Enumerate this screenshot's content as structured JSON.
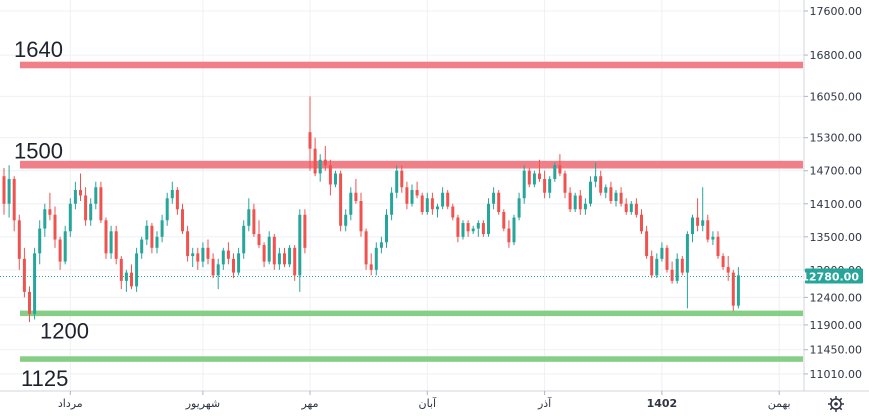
{
  "chart_data": {
    "type": "candlestick",
    "y_range": [
      10700,
      17800
    ],
    "y_ticks": [
      {
        "value": 17600,
        "label": "17600.00"
      },
      {
        "value": 16800,
        "label": "16800.00"
      },
      {
        "value": 16050,
        "label": "16050.00"
      },
      {
        "value": 15300,
        "label": "15300.00"
      },
      {
        "value": 14700,
        "label": "14700.00"
      },
      {
        "value": 14100,
        "label": "14100.00"
      },
      {
        "value": 13500,
        "label": "13500.00"
      },
      {
        "value": 12900,
        "label": "12900.00"
      },
      {
        "value": 12400,
        "label": "12400.00"
      },
      {
        "value": 11900,
        "label": "11900.00"
      },
      {
        "value": 11450,
        "label": "11450.00"
      },
      {
        "value": 11010,
        "label": "11010.00"
      }
    ],
    "x_ticks": [
      {
        "index": 13,
        "label": "مرداد",
        "bold": false
      },
      {
        "index": 39,
        "label": "شهریور",
        "bold": false
      },
      {
        "index": 60,
        "label": "مهر",
        "bold": false
      },
      {
        "index": 83,
        "label": "آبان",
        "bold": false
      },
      {
        "index": 106,
        "label": "آذر",
        "bold": false
      },
      {
        "index": 129,
        "label": "1402",
        "bold": true
      },
      {
        "index": 152,
        "label": "بهمن",
        "bold": false
      }
    ],
    "last_price": {
      "value": 12780,
      "label": "12780.00",
      "color": "#26a69a"
    },
    "levels": [
      {
        "name": "resistance-1640",
        "label": "1640",
        "center": 16620,
        "band": [
          16560,
          16680
        ],
        "color": "#f07f88"
      },
      {
        "name": "resistance-1500",
        "label": "1500",
        "center": 14810,
        "band": [
          14740,
          14880
        ],
        "color": "#f07f88"
      },
      {
        "name": "support-1200",
        "label": "1200",
        "center": 12110,
        "band": [
          12060,
          12160
        ],
        "color": "#86cd86"
      },
      {
        "name": "support-1125",
        "label": "1125",
        "center": 11280,
        "band": [
          11230,
          11330
        ],
        "color": "#86cd86"
      }
    ],
    "colors": {
      "up": "#26a69a",
      "down": "#ef5350",
      "grid": "#eef0f3"
    },
    "candles": [
      [
        14600,
        14750,
        13900,
        14100
      ],
      [
        14100,
        14800,
        13850,
        14550
      ],
      [
        14550,
        14600,
        13600,
        13800
      ],
      [
        13800,
        13900,
        12900,
        13100
      ],
      [
        13100,
        13300,
        12400,
        12500
      ],
      [
        12500,
        12600,
        11950,
        12100
      ],
      [
        12100,
        13300,
        12000,
        13200
      ],
      [
        13200,
        13800,
        13000,
        13650
      ],
      [
        13650,
        14100,
        13500,
        14000
      ],
      [
        14000,
        14300,
        13800,
        13900
      ],
      [
        13900,
        14050,
        13300,
        13450
      ],
      [
        13450,
        13500,
        12900,
        13050
      ],
      [
        13050,
        13700,
        13000,
        13600
      ],
      [
        13600,
        14200,
        13500,
        14100
      ],
      [
        14100,
        14500,
        14000,
        14350
      ],
      [
        14350,
        14650,
        14150,
        14250
      ],
      [
        14250,
        14400,
        13700,
        13800
      ],
      [
        13800,
        14200,
        13700,
        14100
      ],
      [
        14100,
        14500,
        14000,
        14400
      ],
      [
        14400,
        14500,
        13750,
        13800
      ],
      [
        13800,
        13850,
        13100,
        13200
      ],
      [
        13200,
        13700,
        13100,
        13600
      ],
      [
        13600,
        13700,
        13000,
        13100
      ],
      [
        13100,
        13150,
        12550,
        12700
      ],
      [
        12700,
        12900,
        12500,
        12850
      ],
      [
        12850,
        13000,
        12550,
        12600
      ],
      [
        12600,
        13300,
        12500,
        13200
      ],
      [
        13200,
        13500,
        13100,
        13450
      ],
      [
        13450,
        13800,
        13350,
        13700
      ],
      [
        13700,
        13750,
        13200,
        13300
      ],
      [
        13300,
        13600,
        13200,
        13500
      ],
      [
        13500,
        13900,
        13400,
        13800
      ],
      [
        13800,
        14300,
        13700,
        14200
      ],
      [
        14200,
        14500,
        14100,
        14350
      ],
      [
        14350,
        14400,
        13900,
        14000
      ],
      [
        14000,
        14100,
        13550,
        13600
      ],
      [
        13600,
        13700,
        13050,
        13150
      ],
      [
        13150,
        13300,
        12950,
        13200
      ],
      [
        13200,
        13300,
        12900,
        13050
      ],
      [
        13050,
        13400,
        12950,
        13300
      ],
      [
        13300,
        13450,
        13000,
        13100
      ],
      [
        13100,
        13200,
        12750,
        12800
      ],
      [
        12800,
        13100,
        12550,
        13000
      ],
      [
        13000,
        13300,
        12900,
        13250
      ],
      [
        13250,
        13400,
        13000,
        13100
      ],
      [
        13100,
        13200,
        12750,
        12850
      ],
      [
        12850,
        13300,
        12800,
        13200
      ],
      [
        13200,
        13800,
        13100,
        13700
      ],
      [
        13700,
        14200,
        13600,
        14000
      ],
      [
        14000,
        14100,
        13500,
        13550
      ],
      [
        13550,
        13800,
        13300,
        13350
      ],
      [
        13350,
        13400,
        12950,
        13050
      ],
      [
        13050,
        13600,
        13000,
        13500
      ],
      [
        13500,
        13550,
        12900,
        13000
      ],
      [
        13000,
        13300,
        12900,
        13200
      ],
      [
        13200,
        13300,
        12950,
        13000
      ],
      [
        13000,
        13350,
        12950,
        13300
      ],
      [
        13300,
        13350,
        12700,
        12800
      ],
      [
        12800,
        14000,
        12500,
        13900
      ],
      [
        13900,
        14000,
        13200,
        13300
      ],
      [
        15400,
        16050,
        14700,
        15100
      ],
      [
        15100,
        15300,
        14600,
        14650
      ],
      [
        14650,
        15000,
        14500,
        14900
      ],
      [
        14900,
        15150,
        14700,
        14800
      ],
      [
        14800,
        14900,
        14250,
        14450
      ],
      [
        14450,
        14700,
        14400,
        14650
      ],
      [
        14650,
        14700,
        13600,
        13700
      ],
      [
        13700,
        14000,
        13600,
        13900
      ],
      [
        13900,
        14400,
        13800,
        14300
      ],
      [
        14300,
        14550,
        14100,
        14150
      ],
      [
        14150,
        14300,
        13500,
        13600
      ],
      [
        13600,
        13650,
        12900,
        13000
      ],
      [
        13000,
        13200,
        12800,
        12900
      ],
      [
        12900,
        13400,
        12800,
        13300
      ],
      [
        13300,
        13500,
        13200,
        13400
      ],
      [
        13400,
        14000,
        13300,
        13900
      ],
      [
        13900,
        14400,
        13800,
        14300
      ],
      [
        14300,
        14800,
        14200,
        14700
      ],
      [
        14700,
        14800,
        14300,
        14400
      ],
      [
        14400,
        14500,
        14000,
        14100
      ],
      [
        14100,
        14450,
        14050,
        14350
      ],
      [
        14350,
        14500,
        14200,
        14250
      ],
      [
        14250,
        14300,
        13900,
        13950
      ],
      [
        13950,
        14300,
        13900,
        14200
      ],
      [
        14200,
        14300,
        13900,
        14000
      ],
      [
        14000,
        14100,
        13850,
        14050
      ],
      [
        14050,
        14400,
        14000,
        14300
      ],
      [
        14300,
        14350,
        14000,
        14050
      ],
      [
        14050,
        14100,
        13800,
        13850
      ],
      [
        13850,
        13900,
        13400,
        13500
      ],
      [
        13500,
        13800,
        13450,
        13750
      ],
      [
        13750,
        13800,
        13500,
        13600
      ],
      [
        13600,
        13700,
        13550,
        13650
      ],
      [
        13650,
        13800,
        13500,
        13750
      ],
      [
        13750,
        13800,
        13500,
        13550
      ],
      [
        13550,
        14200,
        13500,
        14100
      ],
      [
        14100,
        14400,
        14000,
        14300
      ],
      [
        14300,
        14350,
        13900,
        13950
      ],
      [
        13950,
        14000,
        13600,
        13650
      ],
      [
        13650,
        13800,
        13300,
        13400
      ],
      [
        13400,
        13900,
        13350,
        13850
      ],
      [
        13850,
        14300,
        13800,
        14200
      ],
      [
        14200,
        14800,
        14100,
        14700
      ],
      [
        14700,
        14750,
        14400,
        14450
      ],
      [
        14450,
        14700,
        14400,
        14650
      ],
      [
        14650,
        14900,
        14500,
        14550
      ],
      [
        14550,
        14700,
        14200,
        14300
      ],
      [
        14300,
        14600,
        14200,
        14550
      ],
      [
        14550,
        14850,
        14500,
        14800
      ],
      [
        14800,
        15000,
        14600,
        14650
      ],
      [
        14650,
        14700,
        14200,
        14300
      ],
      [
        14300,
        14400,
        13950,
        14000
      ],
      [
        14000,
        14300,
        13950,
        14250
      ],
      [
        14250,
        14350,
        13900,
        14000
      ],
      [
        14000,
        14200,
        13900,
        14100
      ],
      [
        14100,
        14600,
        14050,
        14500
      ],
      [
        14500,
        14850,
        14400,
        14600
      ],
      [
        14600,
        14700,
        14250,
        14300
      ],
      [
        14300,
        14450,
        14200,
        14400
      ],
      [
        14400,
        14500,
        14100,
        14150
      ],
      [
        14150,
        14350,
        14050,
        14300
      ],
      [
        14300,
        14400,
        14050,
        14100
      ],
      [
        14100,
        14200,
        13900,
        13950
      ],
      [
        13950,
        14150,
        13900,
        14100
      ],
      [
        14100,
        14200,
        13850,
        13900
      ],
      [
        13900,
        14000,
        13550,
        13600
      ],
      [
        13600,
        13700,
        13100,
        13150
      ],
      [
        13150,
        13250,
        12750,
        12800
      ],
      [
        12800,
        13200,
        12750,
        13100
      ],
      [
        13100,
        13400,
        13050,
        13300
      ],
      [
        13300,
        13350,
        12850,
        12900
      ],
      [
        12900,
        13050,
        12650,
        12700
      ],
      [
        12700,
        13200,
        12650,
        13100
      ],
      [
        13100,
        13150,
        12800,
        12850
      ],
      [
        12850,
        13600,
        12200,
        13550
      ],
      [
        13550,
        13900,
        13400,
        13850
      ],
      [
        13850,
        14200,
        13600,
        13700
      ],
      [
        13700,
        14400,
        13600,
        13800
      ],
      [
        13800,
        13900,
        13400,
        13450
      ],
      [
        13450,
        13600,
        13350,
        13500
      ],
      [
        13500,
        13600,
        13100,
        13150
      ],
      [
        13150,
        13200,
        12900,
        12950
      ],
      [
        12950,
        13150,
        12700,
        12850
      ],
      [
        12850,
        12900,
        12150,
        12250
      ],
      [
        12250,
        12950,
        12200,
        12800
      ]
    ]
  }
}
